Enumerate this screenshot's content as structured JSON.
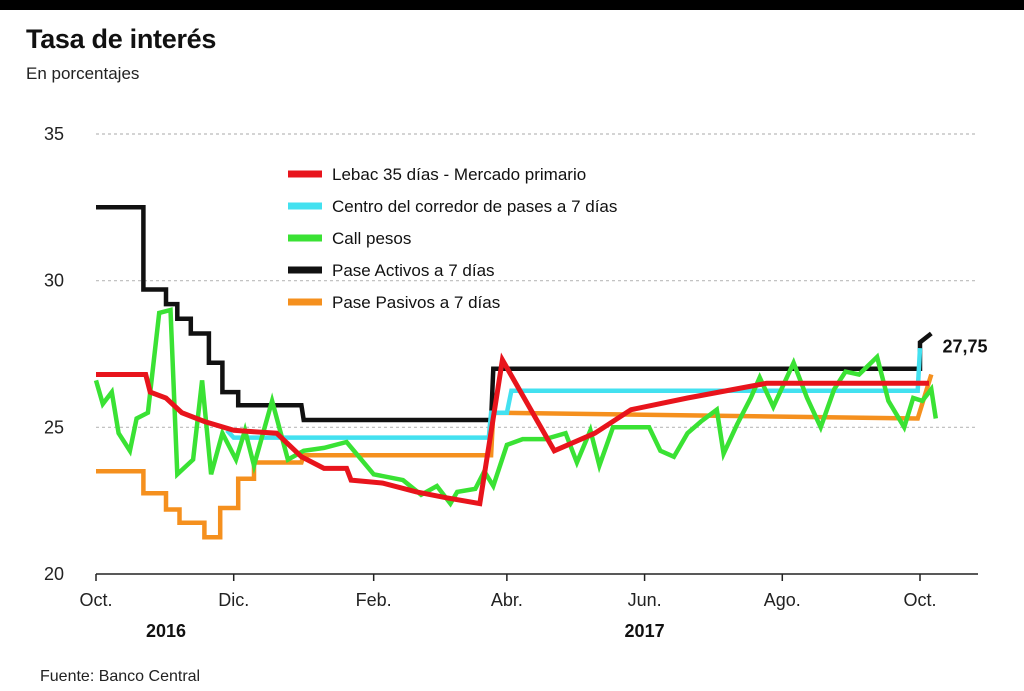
{
  "header": {
    "title": "Tasa de interés",
    "subtitle": "En porcentajes"
  },
  "footer": {
    "source": "Fuente: Banco Central"
  },
  "chart_data": {
    "type": "line",
    "title": "Tasa de interés",
    "subtitle": "En porcentajes",
    "xlabel": "",
    "ylabel": "",
    "ylim": [
      20,
      35
    ],
    "yticks": [
      20,
      25,
      30,
      35
    ],
    "xlim": [
      "2016-10-01",
      "2017-10-20"
    ],
    "x_ticks": [
      {
        "label": "Oct.",
        "date": "2016-10-01"
      },
      {
        "label": "Dic.",
        "date": "2016-12-01"
      },
      {
        "label": "Feb.",
        "date": "2017-02-01"
      },
      {
        "label": "Abr.",
        "date": "2017-04-01"
      },
      {
        "label": "Jun.",
        "date": "2017-06-01"
      },
      {
        "label": "Ago.",
        "date": "2017-08-01"
      },
      {
        "label": "Oct.",
        "date": "2017-10-01"
      }
    ],
    "year_labels": [
      {
        "label": "2016",
        "date": "2016-11-01"
      },
      {
        "label": "2017",
        "date": "2017-06-01"
      }
    ],
    "grid": "horizontal-dashed",
    "legend_position": "top-center",
    "annotation": {
      "label": "27,75",
      "date": "2017-10-03",
      "value": 27.75
    },
    "series": [
      {
        "name": "Lebac 35 días - Mercado primario",
        "color": "#e8141c",
        "points": [
          [
            "2016-10-01",
            26.8
          ],
          [
            "2016-10-23",
            26.8
          ],
          [
            "2016-10-25",
            26.2
          ],
          [
            "2016-11-01",
            26.0
          ],
          [
            "2016-11-08",
            25.5
          ],
          [
            "2016-11-18",
            25.2
          ],
          [
            "2016-12-01",
            24.9
          ],
          [
            "2016-12-10",
            24.85
          ],
          [
            "2016-12-20",
            24.8
          ],
          [
            "2016-12-31",
            24.0
          ],
          [
            "2017-01-10",
            23.6
          ],
          [
            "2017-01-20",
            23.6
          ],
          [
            "2017-01-22",
            23.2
          ],
          [
            "2017-02-05",
            23.1
          ],
          [
            "2017-02-20",
            22.8
          ],
          [
            "2017-03-05",
            22.6
          ],
          [
            "2017-03-20",
            22.4
          ],
          [
            "2017-03-30",
            27.3
          ],
          [
            "2017-04-22",
            24.2
          ],
          [
            "2017-05-10",
            24.8
          ],
          [
            "2017-05-26",
            25.6
          ],
          [
            "2017-06-20",
            26.0
          ],
          [
            "2017-07-25",
            26.5
          ],
          [
            "2017-08-15",
            26.5
          ],
          [
            "2017-09-05",
            26.5
          ],
          [
            "2017-10-05",
            26.5
          ]
        ]
      },
      {
        "name": "Centro del corredor de pases a 7 días",
        "color": "#43e1f0",
        "points": [
          [
            "2016-11-28",
            24.9
          ],
          [
            "2016-12-01",
            24.65
          ],
          [
            "2017-03-24",
            24.65
          ],
          [
            "2017-03-25",
            25.5
          ],
          [
            "2017-04-01",
            25.5
          ],
          [
            "2017-04-03",
            26.25
          ],
          [
            "2017-09-30",
            26.25
          ],
          [
            "2017-10-01",
            27.7
          ]
        ]
      },
      {
        "name": "Call pesos",
        "color": "#3ae234",
        "points": [
          [
            "2016-10-01",
            26.6
          ],
          [
            "2016-10-04",
            25.8
          ],
          [
            "2016-10-08",
            26.2
          ],
          [
            "2016-10-11",
            24.8
          ],
          [
            "2016-10-16",
            24.2
          ],
          [
            "2016-10-19",
            25.3
          ],
          [
            "2016-10-24",
            25.5
          ],
          [
            "2016-10-29",
            28.9
          ],
          [
            "2016-11-03",
            29.0
          ],
          [
            "2016-11-06",
            23.4
          ],
          [
            "2016-11-13",
            23.9
          ],
          [
            "2016-11-17",
            26.6
          ],
          [
            "2016-11-21",
            23.4
          ],
          [
            "2016-11-26",
            24.8
          ],
          [
            "2016-12-02",
            23.9
          ],
          [
            "2016-12-06",
            24.9
          ],
          [
            "2016-12-10",
            23.7
          ],
          [
            "2016-12-18",
            25.9
          ],
          [
            "2016-12-25",
            23.9
          ],
          [
            "2017-01-01",
            24.2
          ],
          [
            "2017-01-10",
            24.3
          ],
          [
            "2017-01-20",
            24.5
          ],
          [
            "2017-02-01",
            23.4
          ],
          [
            "2017-02-14",
            23.2
          ],
          [
            "2017-02-22",
            22.7
          ],
          [
            "2017-03-01",
            23.0
          ],
          [
            "2017-03-07",
            22.4
          ],
          [
            "2017-03-10",
            22.8
          ],
          [
            "2017-03-18",
            22.9
          ],
          [
            "2017-03-22",
            23.5
          ],
          [
            "2017-03-26",
            23.0
          ],
          [
            "2017-04-01",
            24.4
          ],
          [
            "2017-04-08",
            24.6
          ],
          [
            "2017-04-18",
            24.6
          ],
          [
            "2017-04-27",
            24.8
          ],
          [
            "2017-05-02",
            23.8
          ],
          [
            "2017-05-08",
            24.9
          ],
          [
            "2017-05-12",
            23.7
          ],
          [
            "2017-05-18",
            25.0
          ],
          [
            "2017-05-25",
            25.0
          ],
          [
            "2017-06-03",
            25.0
          ],
          [
            "2017-06-08",
            24.2
          ],
          [
            "2017-06-14",
            24.0
          ],
          [
            "2017-06-20",
            24.8
          ],
          [
            "2017-06-26",
            25.2
          ],
          [
            "2017-07-03",
            25.6
          ],
          [
            "2017-07-06",
            24.1
          ],
          [
            "2017-07-12",
            25.1
          ],
          [
            "2017-07-18",
            26.0
          ],
          [
            "2017-07-22",
            26.7
          ],
          [
            "2017-07-28",
            25.7
          ],
          [
            "2017-08-06",
            27.2
          ],
          [
            "2017-08-12",
            26.0
          ],
          [
            "2017-08-18",
            25.0
          ],
          [
            "2017-08-24",
            26.3
          ],
          [
            "2017-08-29",
            26.9
          ],
          [
            "2017-09-04",
            26.8
          ],
          [
            "2017-09-12",
            27.4
          ],
          [
            "2017-09-17",
            25.9
          ],
          [
            "2017-09-24",
            25.0
          ],
          [
            "2017-09-28",
            26.0
          ],
          [
            "2017-10-02",
            25.9
          ],
          [
            "2017-10-06",
            26.3
          ],
          [
            "2017-10-08",
            25.3
          ]
        ]
      },
      {
        "name": "Pase Activos a 7 días",
        "color": "#111111",
        "points": [
          [
            "2016-10-01",
            32.5
          ],
          [
            "2016-10-22",
            32.5
          ],
          [
            "2016-10-22",
            29.7
          ],
          [
            "2016-11-01",
            29.7
          ],
          [
            "2016-11-01",
            29.2
          ],
          [
            "2016-11-06",
            29.2
          ],
          [
            "2016-11-06",
            28.7
          ],
          [
            "2016-11-12",
            28.7
          ],
          [
            "2016-11-12",
            28.2
          ],
          [
            "2016-11-20",
            28.2
          ],
          [
            "2016-11-20",
            27.2
          ],
          [
            "2016-11-26",
            27.2
          ],
          [
            "2016-11-26",
            26.2
          ],
          [
            "2016-12-03",
            26.2
          ],
          [
            "2016-12-03",
            25.75
          ],
          [
            "2016-12-10",
            25.75
          ],
          [
            "2016-12-10",
            25.75
          ],
          [
            "2016-12-31",
            25.75
          ],
          [
            "2017-01-01",
            25.25
          ],
          [
            "2017-03-25",
            25.25
          ],
          [
            "2017-03-26",
            27.0
          ],
          [
            "2017-10-01",
            27.0
          ],
          [
            "2017-10-01",
            27.9
          ],
          [
            "2017-10-06",
            28.2
          ]
        ]
      },
      {
        "name": "Pase Pasivos a 7 días",
        "color": "#f5901e",
        "points": [
          [
            "2016-10-01",
            23.5
          ],
          [
            "2016-10-22",
            23.5
          ],
          [
            "2016-10-22",
            22.75
          ],
          [
            "2016-11-01",
            22.75
          ],
          [
            "2016-11-01",
            22.2
          ],
          [
            "2016-11-07",
            22.2
          ],
          [
            "2016-11-07",
            21.75
          ],
          [
            "2016-11-18",
            21.75
          ],
          [
            "2016-11-18",
            21.25
          ],
          [
            "2016-11-25",
            21.25
          ],
          [
            "2016-11-25",
            22.25
          ],
          [
            "2016-12-03",
            22.25
          ],
          [
            "2016-12-03",
            23.25
          ],
          [
            "2016-12-10",
            23.25
          ],
          [
            "2016-12-10",
            23.8
          ],
          [
            "2016-12-31",
            23.8
          ],
          [
            "2017-01-01",
            24.05
          ],
          [
            "2017-03-25",
            24.05
          ],
          [
            "2017-03-26",
            25.5
          ],
          [
            "2017-09-30",
            25.3
          ],
          [
            "2017-10-06",
            26.8
          ]
        ]
      }
    ]
  }
}
